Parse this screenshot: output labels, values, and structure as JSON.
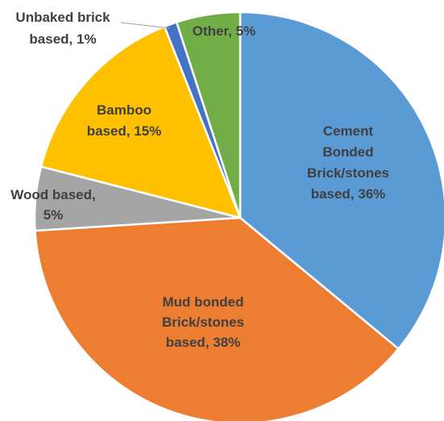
{
  "chart_data": {
    "type": "pie",
    "title": "",
    "slices": [
      {
        "name": "Cement Bonded Brick/stones based",
        "value": 36,
        "color": "#5B9BD5",
        "label_lines": [
          "Cement",
          "Bonded",
          "Brick/stones",
          "based,  36%"
        ]
      },
      {
        "name": "Mud bonded Brick/stones based",
        "value": 38,
        "color": "#ED7D31",
        "label_lines": [
          "Mud bonded",
          "Brick/stones",
          "based,  38%"
        ]
      },
      {
        "name": "Wood based",
        "value": 5,
        "color": "#A5A5A5",
        "label_lines": [
          "Wood based,",
          "5%"
        ]
      },
      {
        "name": "Bamboo based",
        "value": 15,
        "color": "#FFC000",
        "label_lines": [
          "Bamboo",
          "based, 15%"
        ]
      },
      {
        "name": "Unbaked brick based",
        "value": 1,
        "color": "#4472C4",
        "label_lines": [
          "Unbaked brick",
          "based,  1%"
        ]
      },
      {
        "name": "Other",
        "value": 5,
        "color": "#70AD47",
        "label_lines": [
          "Other, 5%"
        ]
      }
    ]
  }
}
